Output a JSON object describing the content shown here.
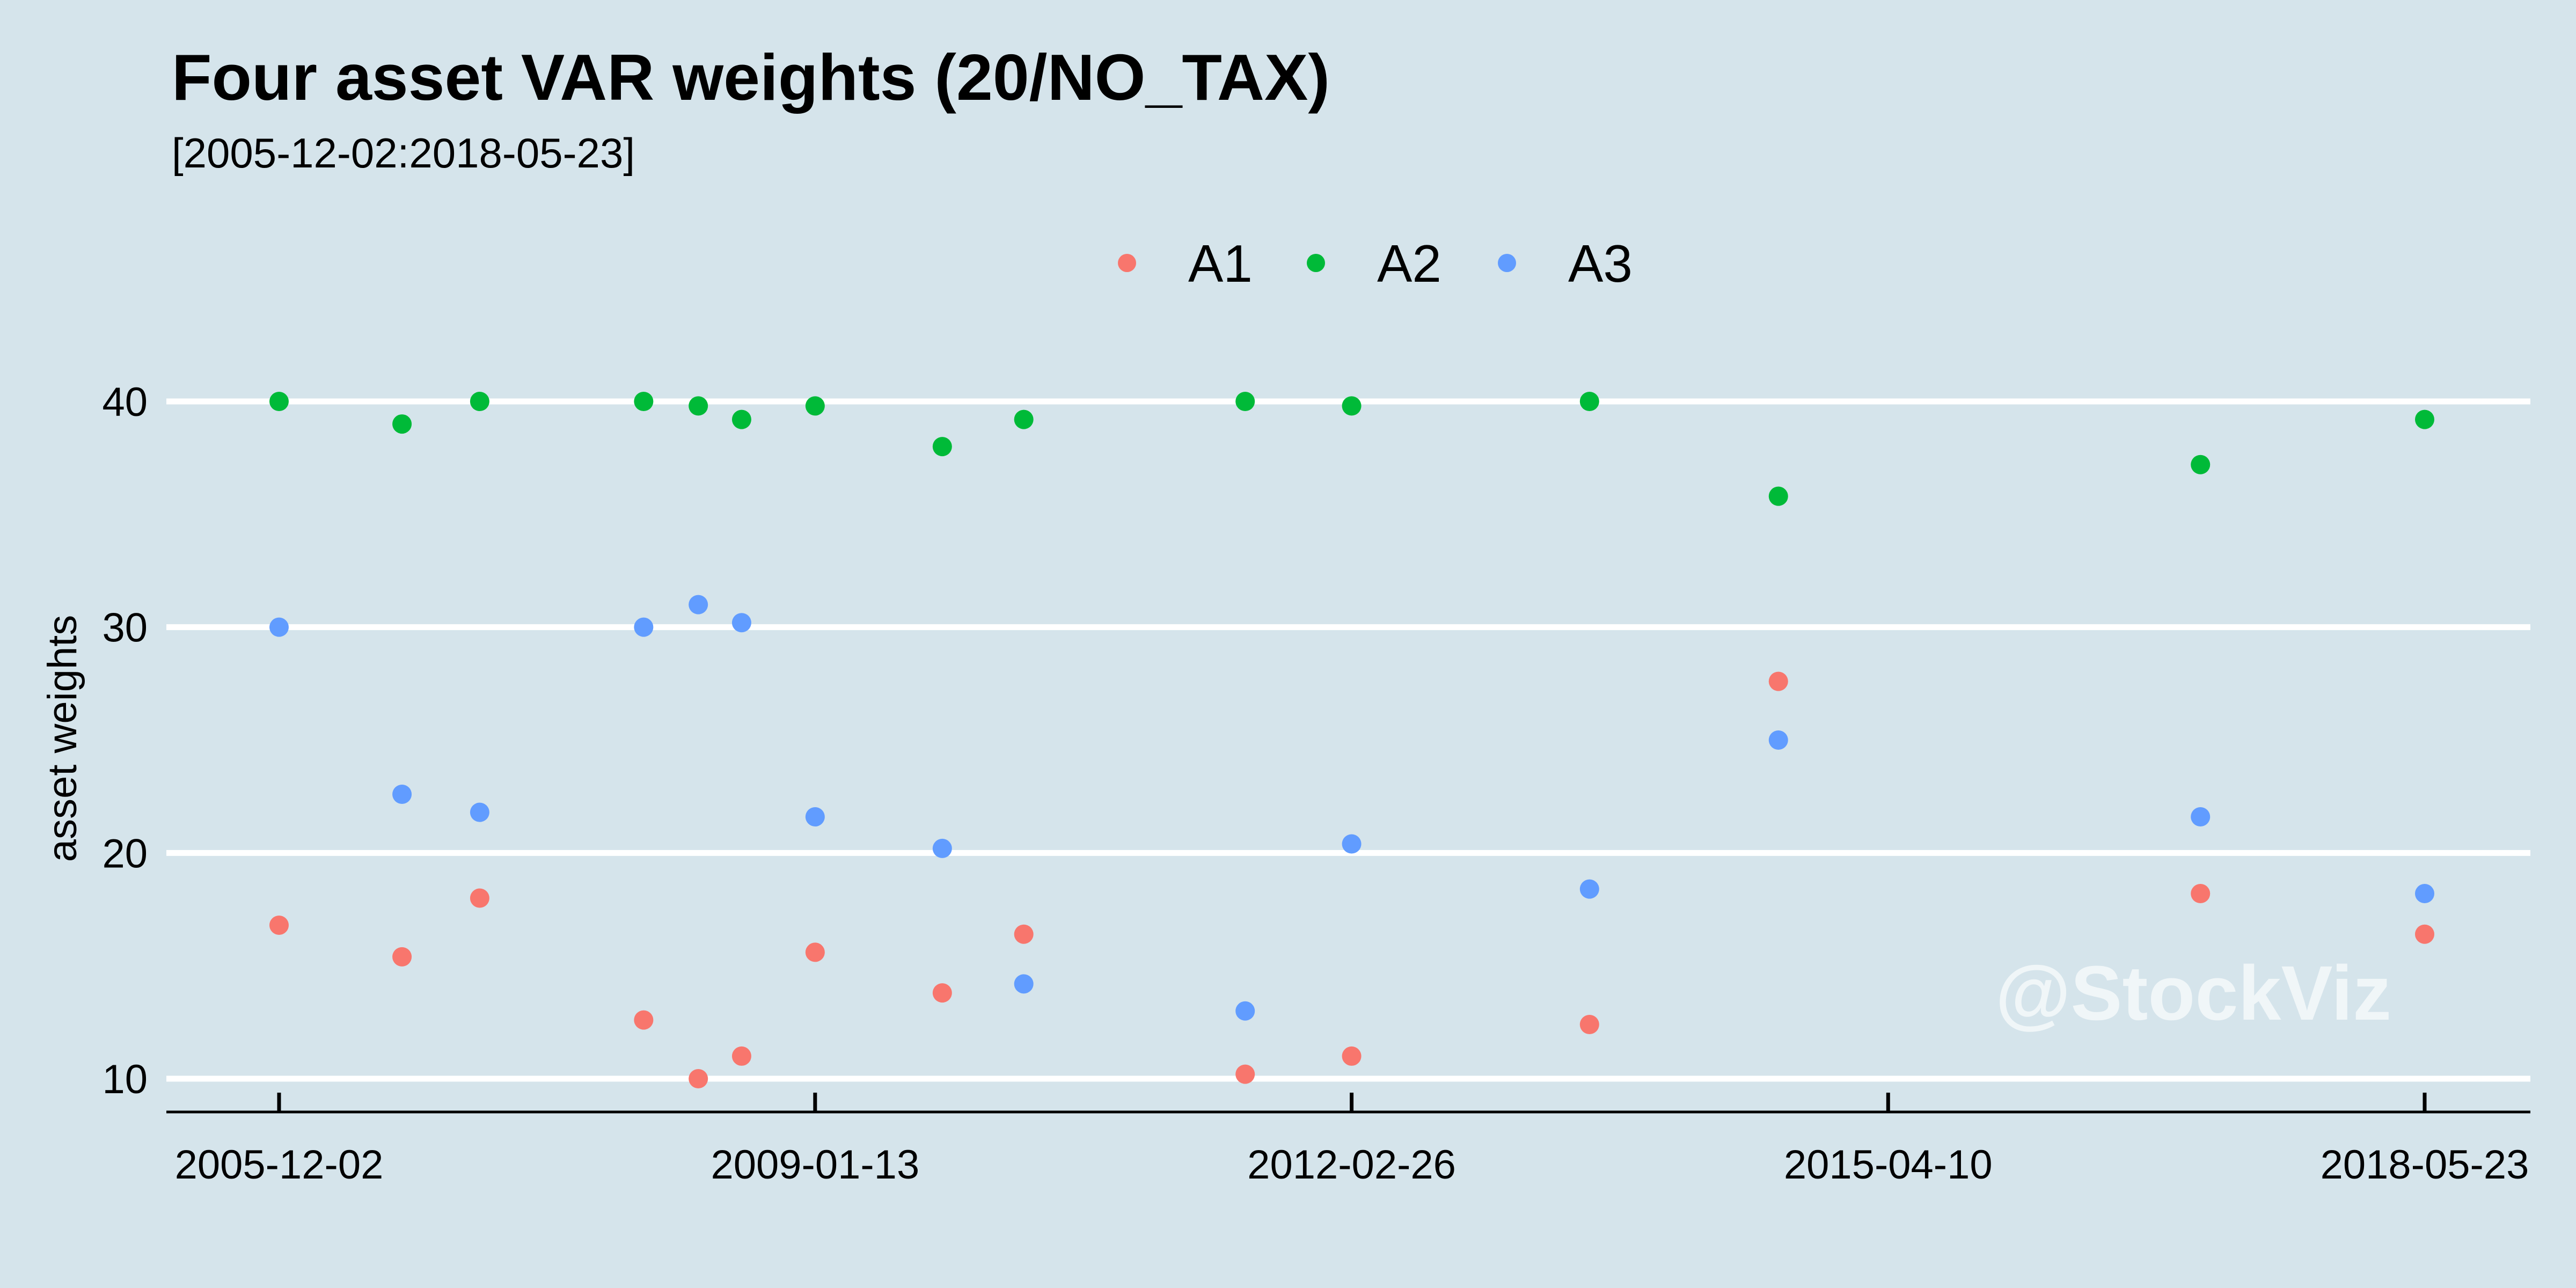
{
  "chart_data": {
    "type": "scatter",
    "title": "Four asset VAR weights (20/NO_TAX)",
    "subtitle": "[2005-12-02:2018-05-23]",
    "xlabel": "",
    "ylabel": "asset weights",
    "x_ticks": [
      "2005-12-02",
      "2009-01-13",
      "2012-02-26",
      "2015-04-10",
      "2018-05-23"
    ],
    "y_ticks": [
      10,
      20,
      30,
      40
    ],
    "ylim": [
      8.6,
      41.5
    ],
    "xlim": [
      "2005-08-10",
      "2018-06-30"
    ],
    "grid": "horizontal major lines",
    "legend_position": "top",
    "watermark": "@StockViz",
    "background": "#d5e4eb",
    "series": [
      {
        "name": "A1",
        "color": "#f8766d",
        "points": [
          {
            "x": "2005-12-02",
            "y": 16.8
          },
          {
            "x": "2006-08-20",
            "y": 15.4
          },
          {
            "x": "2007-02-01",
            "y": 18.0
          },
          {
            "x": "2008-01-15",
            "y": 12.6
          },
          {
            "x": "2008-05-10",
            "y": 10.0
          },
          {
            "x": "2008-08-10",
            "y": 11.0
          },
          {
            "x": "2009-01-13",
            "y": 15.6
          },
          {
            "x": "2009-10-10",
            "y": 13.8
          },
          {
            "x": "2010-04-01",
            "y": 16.4
          },
          {
            "x": "2011-07-15",
            "y": 10.2
          },
          {
            "x": "2012-02-26",
            "y": 11.0
          },
          {
            "x": "2013-07-15",
            "y": 12.4
          },
          {
            "x": "2014-08-20",
            "y": 27.6
          },
          {
            "x": "2017-02-01",
            "y": 18.2
          },
          {
            "x": "2018-05-23",
            "y": 16.4
          }
        ]
      },
      {
        "name": "A2",
        "color": "#00ba38",
        "points": [
          {
            "x": "2005-12-02",
            "y": 40.0
          },
          {
            "x": "2006-08-20",
            "y": 39.0
          },
          {
            "x": "2007-02-01",
            "y": 40.0
          },
          {
            "x": "2008-01-15",
            "y": 40.0
          },
          {
            "x": "2008-05-10",
            "y": 39.8
          },
          {
            "x": "2008-08-10",
            "y": 39.2
          },
          {
            "x": "2009-01-13",
            "y": 39.8
          },
          {
            "x": "2009-10-10",
            "y": 38.0
          },
          {
            "x": "2010-04-01",
            "y": 39.2
          },
          {
            "x": "2011-07-15",
            "y": 40.0
          },
          {
            "x": "2012-02-26",
            "y": 39.8
          },
          {
            "x": "2013-07-15",
            "y": 40.0
          },
          {
            "x": "2014-08-20",
            "y": 35.8
          },
          {
            "x": "2017-02-01",
            "y": 37.2
          },
          {
            "x": "2018-05-23",
            "y": 39.2
          }
        ]
      },
      {
        "name": "A3",
        "color": "#619cff",
        "points": [
          {
            "x": "2005-12-02",
            "y": 30.0
          },
          {
            "x": "2006-08-20",
            "y": 22.6
          },
          {
            "x": "2007-02-01",
            "y": 21.8
          },
          {
            "x": "2008-01-15",
            "y": 30.0
          },
          {
            "x": "2008-05-10",
            "y": 31.0
          },
          {
            "x": "2008-08-10",
            "y": 30.2
          },
          {
            "x": "2009-01-13",
            "y": 21.6
          },
          {
            "x": "2009-10-10",
            "y": 20.2
          },
          {
            "x": "2010-04-01",
            "y": 14.2
          },
          {
            "x": "2011-07-15",
            "y": 13.0
          },
          {
            "x": "2012-02-26",
            "y": 20.4
          },
          {
            "x": "2013-07-15",
            "y": 18.4
          },
          {
            "x": "2014-08-20",
            "y": 25.0
          },
          {
            "x": "2017-02-01",
            "y": 21.6
          },
          {
            "x": "2018-05-23",
            "y": 18.2
          }
        ]
      }
    ]
  }
}
